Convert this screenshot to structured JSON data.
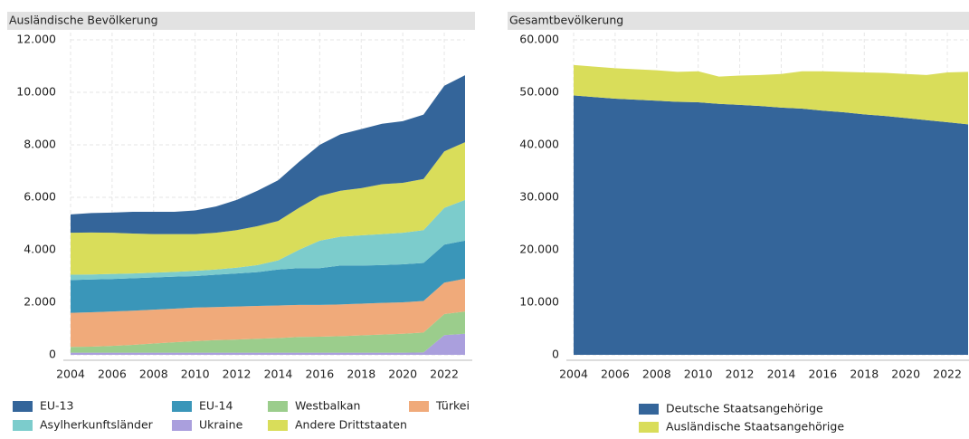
{
  "chart_data": [
    {
      "type": "area",
      "stacked": true,
      "title": "Ausländische Bevölkerung",
      "x": [
        2004,
        2005,
        2006,
        2007,
        2008,
        2009,
        2010,
        2011,
        2012,
        2013,
        2014,
        2015,
        2016,
        2017,
        2018,
        2019,
        2020,
        2021,
        2022,
        2023
      ],
      "xlim": [
        2004,
        2023
      ],
      "xticks": [
        2004,
        2006,
        2008,
        2010,
        2012,
        2014,
        2016,
        2018,
        2020,
        2022
      ],
      "ylim": [
        0,
        12000
      ],
      "yticks": [
        0,
        {
          "value": 2000,
          "label": "2.000"
        },
        {
          "value": 4000,
          "label": "4.000"
        },
        {
          "value": 6000,
          "label": "6.000"
        },
        {
          "value": 8000,
          "label": "8.000"
        },
        {
          "value": 10000,
          "label": "10.000"
        },
        {
          "value": 12000,
          "label": "12.000"
        }
      ],
      "grid": true,
      "series": [
        {
          "name": "EU-13",
          "color": "#34659a",
          "values": [
            700,
            740,
            770,
            830,
            850,
            850,
            900,
            1000,
            1150,
            1350,
            1550,
            1750,
            1950,
            2150,
            2250,
            2300,
            2350,
            2450,
            2500,
            2550
          ]
        },
        {
          "name": "EU-14",
          "color": "#3a96b9",
          "values": [
            1250,
            1250,
            1240,
            1240,
            1230,
            1220,
            1200,
            1230,
            1260,
            1290,
            1370,
            1400,
            1400,
            1480,
            1450,
            1440,
            1450,
            1450,
            1450,
            1450
          ]
        },
        {
          "name": "Westbalkan",
          "color": "#9bcd8c",
          "values": [
            220,
            230,
            260,
            300,
            350,
            400,
            440,
            480,
            500,
            530,
            560,
            600,
            610,
            630,
            660,
            690,
            720,
            760,
            800,
            850
          ]
        },
        {
          "name": "Türkei",
          "color": "#f0aa7a",
          "values": [
            1300,
            1310,
            1310,
            1300,
            1290,
            1280,
            1280,
            1260,
            1260,
            1250,
            1240,
            1220,
            1210,
            1210,
            1210,
            1210,
            1200,
            1200,
            1200,
            1250
          ]
        },
        {
          "name": "Asylherkunftsländer",
          "color": "#7ccccc",
          "values": [
            200,
            190,
            190,
            180,
            180,
            180,
            200,
            200,
            220,
            270,
            350,
            700,
            1050,
            1100,
            1150,
            1180,
            1200,
            1250,
            1400,
            1550
          ]
        },
        {
          "name": "Ukraine",
          "color": "#aa9fdd",
          "values": [
            80,
            80,
            80,
            80,
            80,
            80,
            80,
            80,
            80,
            80,
            80,
            80,
            80,
            80,
            80,
            80,
            80,
            90,
            750,
            800
          ]
        },
        {
          "name": "Andere Drittstaaten",
          "color": "#d9dd5a",
          "values": [
            1600,
            1600,
            1570,
            1520,
            1470,
            1440,
            1400,
            1400,
            1430,
            1480,
            1500,
            1600,
            1700,
            1750,
            1800,
            1900,
            1900,
            1950,
            2150,
            2200
          ]
        }
      ]
    },
    {
      "type": "area",
      "stacked": true,
      "title": "Gesamtbevölkerung",
      "x": [
        2004,
        2005,
        2006,
        2007,
        2008,
        2009,
        2010,
        2011,
        2012,
        2013,
        2014,
        2015,
        2016,
        2017,
        2018,
        2019,
        2020,
        2021,
        2022,
        2023
      ],
      "xlim": [
        2004,
        2023
      ],
      "xticks": [
        2004,
        2006,
        2008,
        2010,
        2012,
        2014,
        2016,
        2018,
        2020,
        2022
      ],
      "ylim": [
        0,
        60000
      ],
      "yticks": [
        0,
        {
          "value": 10000,
          "label": "10.000"
        },
        {
          "value": 20000,
          "label": "20.000"
        },
        {
          "value": 30000,
          "label": "30.000"
        },
        {
          "value": 40000,
          "label": "40.000"
        },
        {
          "value": 50000,
          "label": "50.000"
        },
        {
          "value": 60000,
          "label": "60.000"
        }
      ],
      "grid": true,
      "series": [
        {
          "name": "Deutsche Staatsangehörige",
          "color": "#34659a",
          "values": [
            49400,
            49100,
            48800,
            48600,
            48400,
            48200,
            48100,
            47800,
            47600,
            47400,
            47100,
            46900,
            46500,
            46200,
            45800,
            45500,
            45100,
            44700,
            44300,
            43900
          ]
        },
        {
          "name": "Ausländische Staatsangehörige",
          "color": "#d9dd5a",
          "values": [
            5800,
            5800,
            5800,
            5800,
            5800,
            5700,
            5900,
            5200,
            5600,
            5900,
            6400,
            7100,
            7500,
            7700,
            8000,
            8200,
            8400,
            8600,
            9500,
            10000
          ]
        }
      ]
    }
  ]
}
